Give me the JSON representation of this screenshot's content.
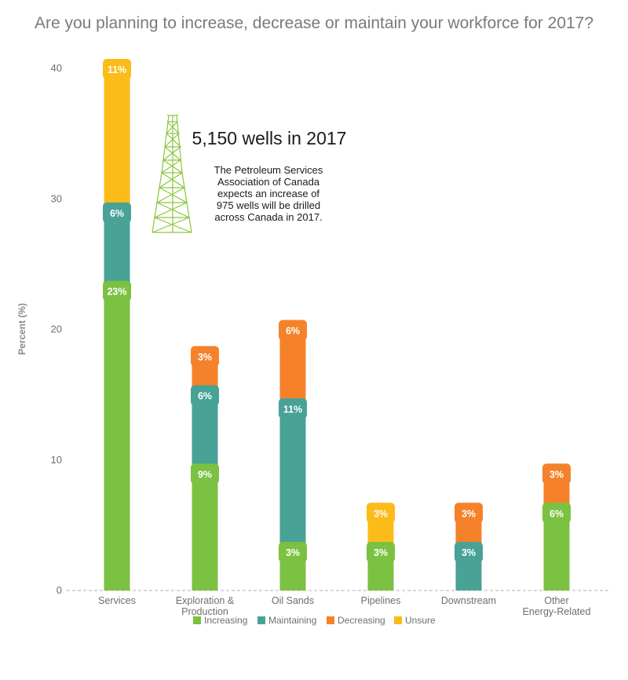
{
  "chart_data": {
    "type": "bar",
    "stacked": true,
    "title": "Are you planning to increase, decrease or maintain your workforce for 2017?",
    "ylabel": "Percent (%)",
    "ylim": [
      0,
      40
    ],
    "yticks": [
      0,
      10,
      20,
      30,
      40
    ],
    "categories": [
      [
        "Services"
      ],
      [
        "Exploration &",
        "Production"
      ],
      [
        "Oil Sands"
      ],
      [
        "Pipelines"
      ],
      [
        "Downstream"
      ],
      [
        "Other",
        "Energy-Related"
      ]
    ],
    "series": [
      {
        "name": "Increasing",
        "color": "#7bc142",
        "values": [
          23,
          9,
          3,
          3,
          0,
          6
        ]
      },
      {
        "name": "Maintaining",
        "color": "#48a296",
        "values": [
          6,
          6,
          11,
          0,
          3,
          0
        ]
      },
      {
        "name": "Decreasing",
        "color": "#f5822a",
        "values": [
          0,
          3,
          6,
          0,
          3,
          3
        ]
      },
      {
        "name": "Unsure",
        "color": "#fbbc1a",
        "values": [
          11,
          0,
          0,
          3,
          0,
          0
        ]
      }
    ],
    "legend_position": "bottom",
    "annotation": {
      "headline": "5,150 wells in 2017",
      "body": [
        "The Petroleum Services",
        "Association of Canada",
        "expects an increase of",
        "975 wells will be drilled",
        "across Canada in 2017."
      ],
      "icon": "oil-derrick-icon"
    }
  }
}
